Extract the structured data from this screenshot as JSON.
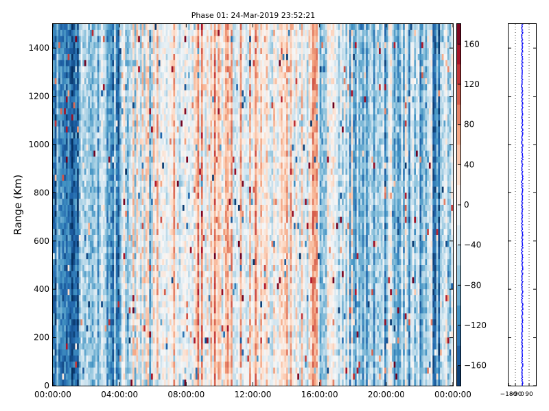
{
  "chart_data": [
    {
      "type": "heatmap",
      "title": "Phase 01: 24-Mar-2019 23:52:21",
      "xlabel": "",
      "ylabel": "Range (Km)",
      "xlim": [
        "00:00:00",
        "24:00:00"
      ],
      "ylim": [
        0,
        1500
      ],
      "x_ticks": [
        "00:00:00",
        "04:00:00",
        "08:00:00",
        "12:00:00",
        "16:00:00",
        "20:00:00",
        "00:00:00"
      ],
      "x_tick_hours": [
        0,
        4,
        8,
        12,
        16,
        20,
        24
      ],
      "y_ticks": [
        0,
        200,
        400,
        600,
        800,
        1000,
        1200,
        1400
      ],
      "colorbar": {
        "colormap": "RdBu_r",
        "range": [
          -180,
          180
        ],
        "ticks": [
          -160,
          -120,
          -80,
          -40,
          0,
          40,
          80,
          120,
          160
        ],
        "tick_labels": [
          "−160",
          "−120",
          "−80",
          "−40",
          "0",
          "40",
          "80",
          "120",
          "160"
        ],
        "n_levels": 18
      },
      "mean_phase_by_time_block": {
        "block_hours": 2,
        "block_start_hours": [
          0,
          2,
          4,
          6,
          8,
          10,
          12,
          14,
          16,
          18,
          20,
          22
        ],
        "values": [
          -95,
          -85,
          -20,
          10,
          25,
          25,
          30,
          20,
          -40,
          -70,
          -60,
          -75
        ]
      },
      "grid": false
    },
    {
      "type": "scatter",
      "description_series": "phase profile",
      "xlim": [
        -180,
        180
      ],
      "ylim": [
        0,
        1500
      ],
      "x_ticks": [
        -180,
        -90,
        0,
        90
      ],
      "x_tick_labels": [
        "−180",
        "−90",
        "0",
        "90"
      ],
      "y_ticks": [
        0,
        200,
        400,
        600,
        800,
        1000,
        1200,
        1400
      ],
      "point_color": "#0000ff",
      "center_value": 0,
      "spread": 8,
      "grid": "vertical dotted"
    }
  ]
}
